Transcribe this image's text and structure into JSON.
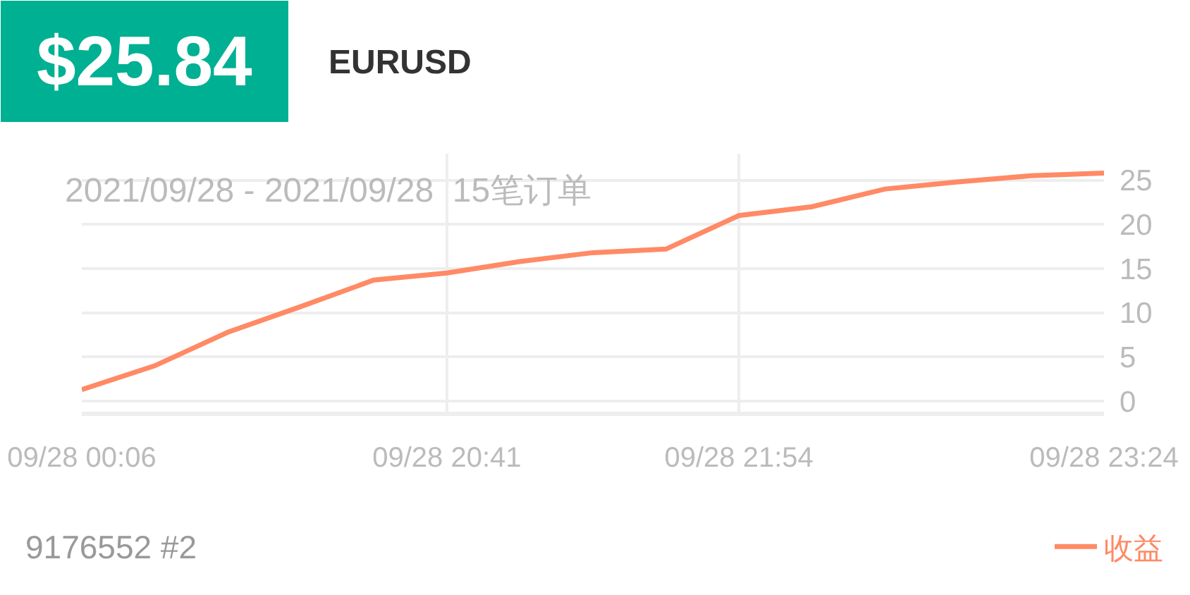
{
  "chart_data": {
    "type": "line",
    "title": "$25.84",
    "subtitle": "EURUSD",
    "annotations": [
      "2021/09/28 - 2021/09/28  15笔订单",
      "9176552 #2"
    ],
    "categories": [
      "09/28 00:06",
      null,
      null,
      null,
      null,
      "09/28 20:41",
      null,
      null,
      null,
      "09/28 21:54",
      null,
      null,
      null,
      null,
      "09/28 23:24"
    ],
    "series": [
      {
        "name": "收益",
        "color": "#ff8a65",
        "values": [
          1.3,
          4.0,
          7.8,
          10.7,
          13.7,
          14.5,
          15.8,
          16.8,
          17.2,
          21.0,
          22.0,
          24.0,
          24.8,
          25.5,
          25.8
        ]
      }
    ],
    "ylim": [
      -1.2,
      28
    ],
    "yticks": [
      0,
      5,
      10,
      15,
      20,
      25
    ],
    "grid": true,
    "legend": "bottom right",
    "line_style": "solid"
  }
}
